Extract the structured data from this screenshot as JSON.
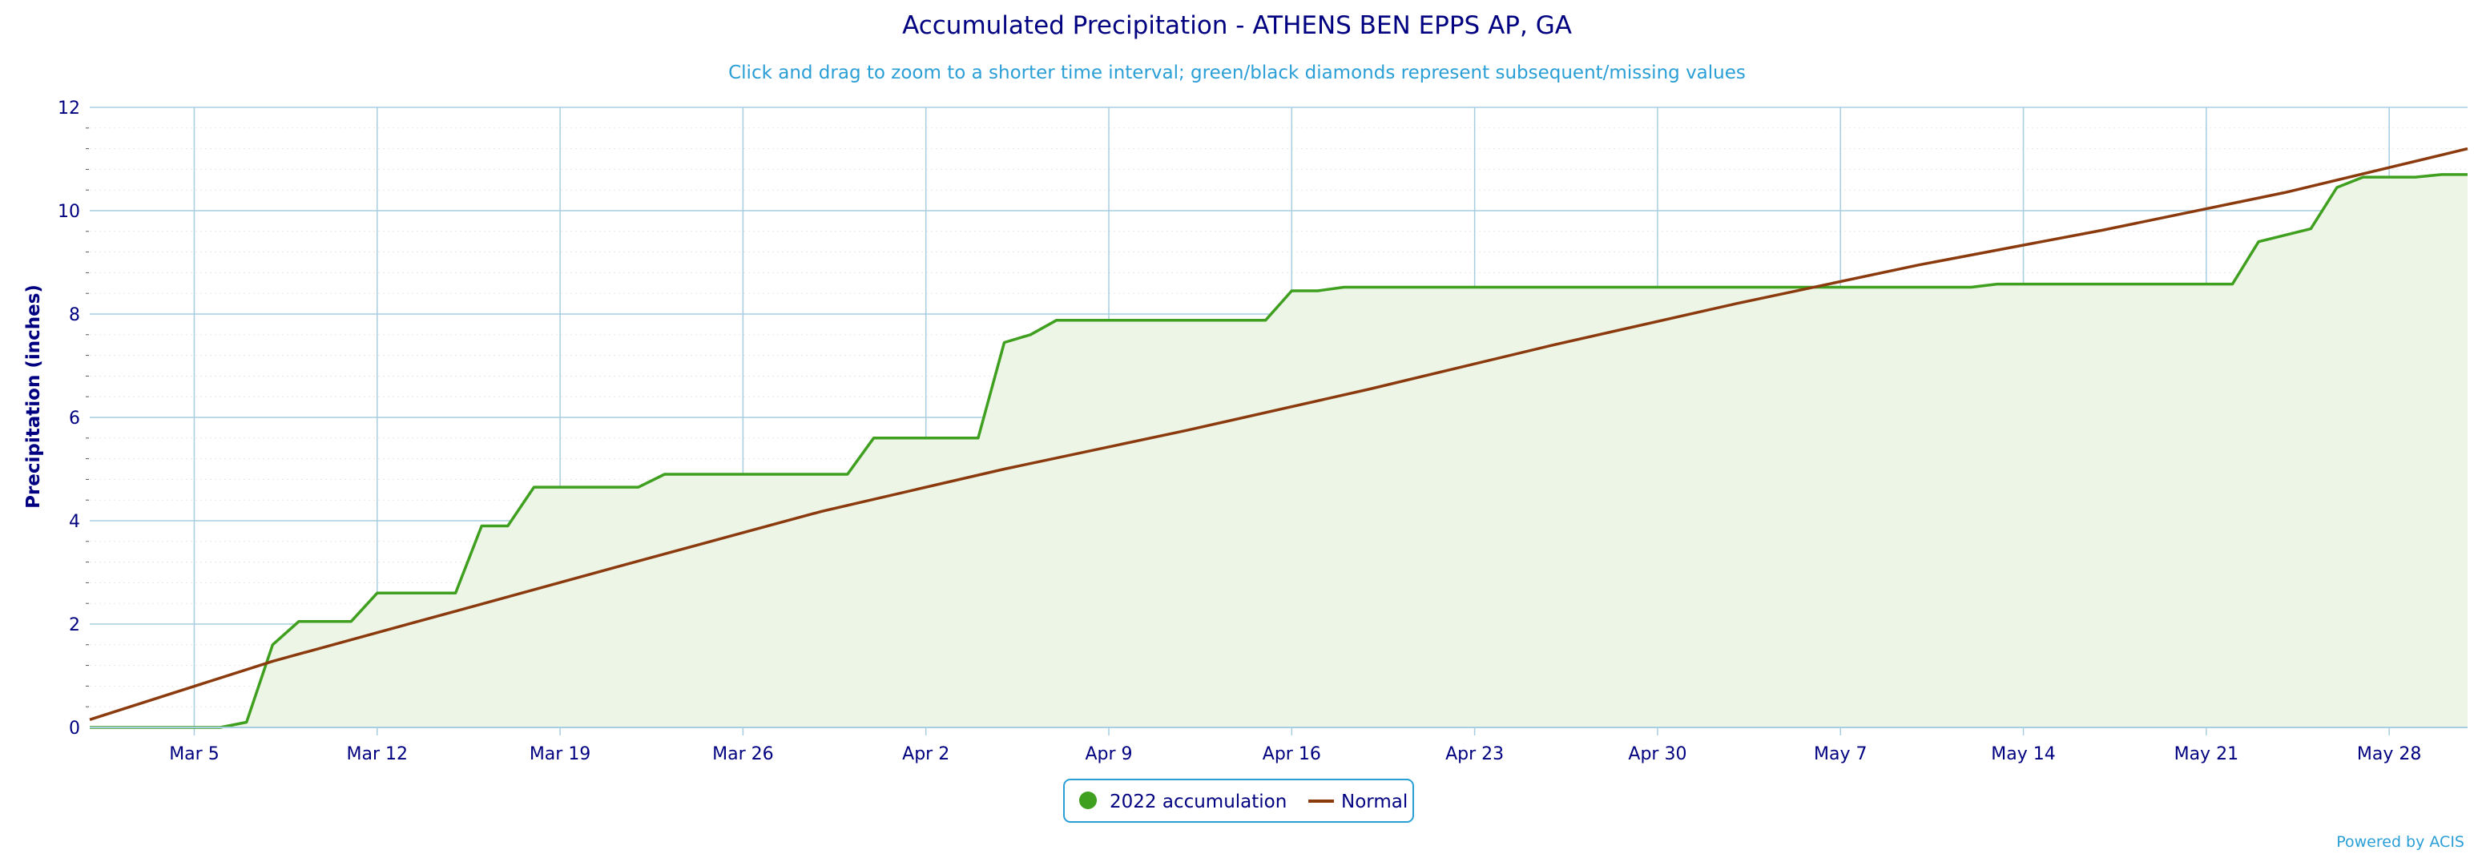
{
  "colors": {
    "title": "#000080",
    "subtitle": "#2a9fd6",
    "grid": "#a7cde0",
    "minor_grid": "#e8e8e8",
    "accumulation": "#3f9f1f",
    "accumulation_fill": "#edf5e7",
    "normal": "#8b3a0e",
    "axis": "#000080",
    "legend_border": "#2a9fd6",
    "credit": "#2a9fd6"
  },
  "credit": "Powered by ACIS",
  "chart_data": {
    "type": "line",
    "title": "Accumulated Precipitation - ATHENS BEN EPPS AP, GA",
    "subtitle": "Click and drag to zoom to a shorter time interval; green/black diamonds represent subsequent/missing values",
    "xlabel": "",
    "ylabel": "Precipitation (inches)",
    "xlim": [
      "2022-03-01",
      "2022-05-31"
    ],
    "ylim": [
      0,
      12
    ],
    "yticks": [
      0,
      2,
      4,
      6,
      8,
      10,
      12
    ],
    "xticks": [
      {
        "date": "2022-03-05",
        "label": "Mar 5"
      },
      {
        "date": "2022-03-12",
        "label": "Mar 12"
      },
      {
        "date": "2022-03-19",
        "label": "Mar 19"
      },
      {
        "date": "2022-03-26",
        "label": "Mar 26"
      },
      {
        "date": "2022-04-02",
        "label": "Apr 2"
      },
      {
        "date": "2022-04-09",
        "label": "Apr 9"
      },
      {
        "date": "2022-04-16",
        "label": "Apr 16"
      },
      {
        "date": "2022-04-23",
        "label": "Apr 23"
      },
      {
        "date": "2022-04-30",
        "label": "Apr 30"
      },
      {
        "date": "2022-05-07",
        "label": "May 7"
      },
      {
        "date": "2022-05-14",
        "label": "May 14"
      },
      {
        "date": "2022-05-21",
        "label": "May 21"
      },
      {
        "date": "2022-05-28",
        "label": "May 28"
      }
    ],
    "grid": true,
    "legend_position": "bottom-center",
    "series": [
      {
        "name": "2022 accumulation",
        "type": "area",
        "color": "#3f9f1f",
        "points": [
          [
            "2022-03-01",
            0
          ],
          [
            "2022-03-06",
            0
          ],
          [
            "2022-03-07",
            0.1
          ],
          [
            "2022-03-08",
            1.6
          ],
          [
            "2022-03-09",
            2.05
          ],
          [
            "2022-03-11",
            2.05
          ],
          [
            "2022-03-12",
            2.6
          ],
          [
            "2022-03-15",
            2.6
          ],
          [
            "2022-03-16",
            3.9
          ],
          [
            "2022-03-17",
            3.9
          ],
          [
            "2022-03-18",
            4.65
          ],
          [
            "2022-03-22",
            4.65
          ],
          [
            "2022-03-23",
            4.9
          ],
          [
            "2022-03-30",
            4.9
          ],
          [
            "2022-03-31",
            5.6
          ],
          [
            "2022-04-04",
            5.6
          ],
          [
            "2022-04-05",
            7.45
          ],
          [
            "2022-04-06",
            7.6
          ],
          [
            "2022-04-07",
            7.88
          ],
          [
            "2022-04-15",
            7.88
          ],
          [
            "2022-04-16",
            8.45
          ],
          [
            "2022-04-17",
            8.45
          ],
          [
            "2022-04-18",
            8.52
          ],
          [
            "2022-05-04",
            8.52
          ],
          [
            "2022-05-12",
            8.52
          ],
          [
            "2022-05-13",
            8.58
          ],
          [
            "2022-05-22",
            8.58
          ],
          [
            "2022-05-23",
            9.4
          ],
          [
            "2022-05-25",
            9.65
          ],
          [
            "2022-05-26",
            10.45
          ],
          [
            "2022-05-27",
            10.65
          ],
          [
            "2022-05-29",
            10.65
          ],
          [
            "2022-05-30",
            10.7
          ],
          [
            "2022-05-31",
            10.7
          ]
        ]
      },
      {
        "name": "Normal",
        "type": "line",
        "color": "#8b3a0e",
        "points": [
          [
            "2022-03-01",
            0.15
          ],
          [
            "2022-03-08",
            1.28
          ],
          [
            "2022-03-15",
            2.25
          ],
          [
            "2022-03-22",
            3.22
          ],
          [
            "2022-03-29",
            4.18
          ],
          [
            "2022-04-05",
            5.0
          ],
          [
            "2022-04-12",
            5.75
          ],
          [
            "2022-04-19",
            6.55
          ],
          [
            "2022-04-26",
            7.4
          ],
          [
            "2022-05-03",
            8.2
          ],
          [
            "2022-05-10",
            8.95
          ],
          [
            "2022-05-17",
            9.62
          ],
          [
            "2022-05-24",
            10.35
          ],
          [
            "2022-05-31",
            11.2
          ]
        ]
      }
    ]
  }
}
